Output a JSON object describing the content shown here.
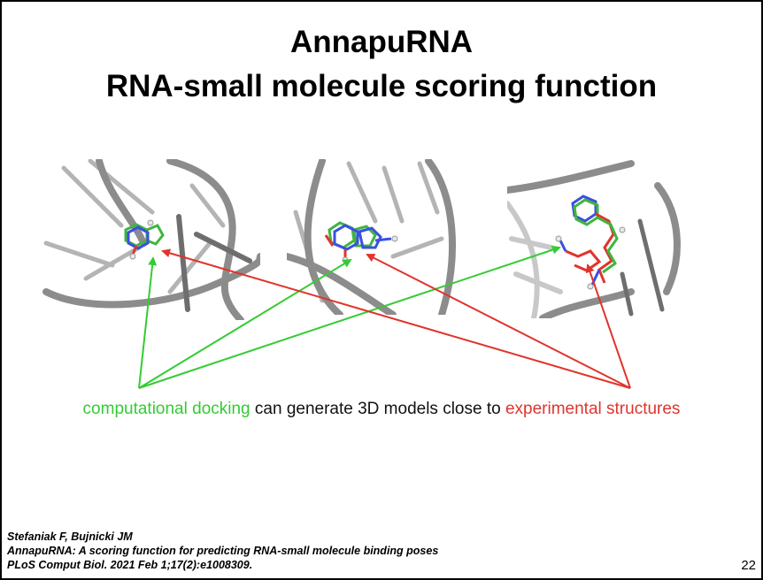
{
  "slide": {
    "title_line1": "AnnapuRNA",
    "title_line2": "RNA-small molecule scoring function",
    "panels": [
      {
        "name": "structure-panel-1"
      },
      {
        "name": "structure-panel-2"
      },
      {
        "name": "structure-panel-3"
      }
    ],
    "caption": {
      "part_green": "computational docking",
      "part_middle": " can generate 3D models close to ",
      "part_red": "experimental structures"
    },
    "colors": {
      "docking_green": "#33cc33",
      "experimental_red": "#e0342c",
      "rna_backbone": "#8c8c8c"
    },
    "citation": {
      "authors": "Stefaniak F, Bujnicki JM",
      "title": "AnnapuRNA: A scoring function for predicting RNA-small molecule binding poses",
      "journal": "PLoS Comput Biol. 2021 Feb 1;17(2):e1008309."
    },
    "page_number": "22"
  }
}
